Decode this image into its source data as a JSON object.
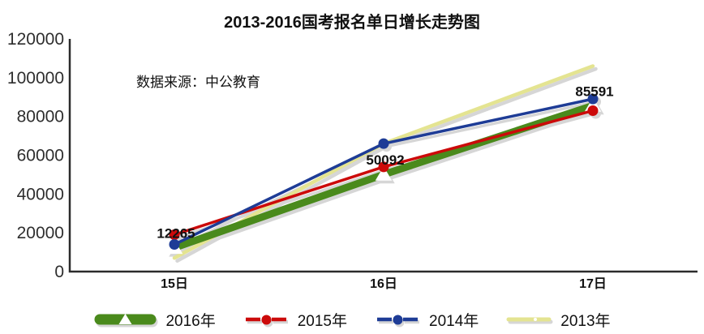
{
  "title": "2013-2016国考报名单日增长走势图",
  "source_note": "数据来源：中公教育",
  "chart_data": {
    "type": "line",
    "title": "2013-2016国考报名单日增长走势图",
    "source_note": "数据来源：中公教育",
    "categories": [
      "15日",
      "16日",
      "17日"
    ],
    "series": [
      {
        "name": "2016年",
        "color": "#4a8a1c",
        "line_width": 9,
        "marker": "triangle",
        "values": [
          12265,
          50092,
          85591
        ],
        "data_labels": true
      },
      {
        "name": "2015年",
        "color": "#cc0a0a",
        "line_width": 3.5,
        "marker": "circle",
        "values": [
          19000,
          54000,
          83000
        ],
        "data_labels": false
      },
      {
        "name": "2014年",
        "color": "#1e3c96",
        "line_width": 3.5,
        "marker": "circle",
        "values": [
          14000,
          66000,
          89000
        ],
        "data_labels": false
      },
      {
        "name": "2013年",
        "color": "#e4e491",
        "line_width": 4.5,
        "marker": "none",
        "values": [
          7000,
          66000,
          106000
        ],
        "data_labels": false
      }
    ],
    "draw_order": [
      "2013年",
      "2016年",
      "2015年",
      "2014年"
    ],
    "ylim": [
      0,
      120000
    ],
    "yticks": [
      0,
      20000,
      40000,
      60000,
      80000,
      100000,
      120000
    ],
    "xlabel": "",
    "ylabel": "",
    "grid": false,
    "legend_position": "bottom",
    "axis_color": "#2b2b2b",
    "shadow_color": "#d6d6d6",
    "label_color": "#111111"
  }
}
